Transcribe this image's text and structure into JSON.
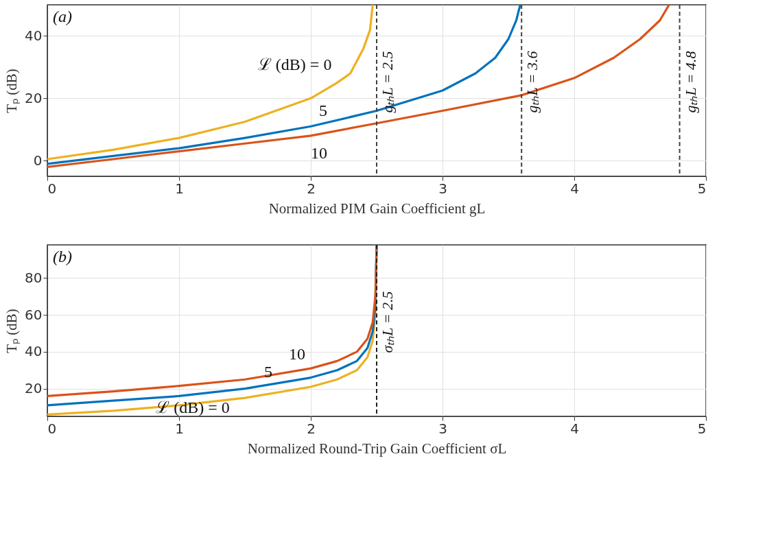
{
  "chart_data": [
    {
      "type": "line",
      "xlabel": "Normalized PIM Gain Coefficient gL",
      "ylabel": "Tₚ (dB)",
      "xlim": [
        0,
        5
      ],
      "xticks": [
        0,
        1,
        2,
        3,
        4,
        5
      ],
      "ylim": [
        -5,
        50
      ],
      "yticks": [
        0,
        20,
        40
      ],
      "grid": true,
      "line_style": "solid",
      "marker": "none",
      "series": [
        {
          "color": "#edb120",
          "x": [
            0,
            0.5,
            1,
            1.5,
            2,
            2.2,
            2.3,
            2.4,
            2.45,
            2.47
          ],
          "values": [
            0.5,
            3.5,
            7.3,
            12.5,
            20,
            25,
            28,
            36,
            42,
            50
          ]
        },
        {
          "color": "#0072bd",
          "x": [
            0,
            0.5,
            1,
            1.5,
            2,
            2.5,
            3,
            3.25,
            3.4,
            3.5,
            3.56,
            3.59
          ],
          "values": [
            -1,
            1.5,
            4,
            7.3,
            11,
            16,
            22.5,
            28,
            33,
            39,
            45,
            50
          ]
        },
        {
          "color": "#d95319",
          "x": [
            0,
            0.5,
            1,
            1.5,
            2,
            2.5,
            3,
            3.6,
            4,
            4.3,
            4.5,
            4.65,
            4.72
          ],
          "values": [
            -2,
            0.5,
            3,
            5.5,
            8,
            12,
            16,
            21,
            26.5,
            33,
            39,
            45,
            50
          ]
        }
      ],
      "ref_lines": [
        {
          "axis": "x",
          "value": 2.5,
          "label": "gₜₕL = 2.5",
          "color": "#404040",
          "line_style": "dashed"
        },
        {
          "axis": "x",
          "value": 3.6,
          "label": "gₜₕL = 3.6",
          "color": "#404040",
          "line_style": "dashed"
        },
        {
          "axis": "x",
          "value": 4.8,
          "label": "gₜₕL = 4.8",
          "color": "#404040",
          "line_style": "dashed"
        }
      ],
      "annotations": [
        "(a)",
        {
          "text": "ℒ (dB) = 0",
          "x": 2.2,
          "y": 25
        },
        {
          "text": "5",
          "x": 2,
          "y": 11
        },
        {
          "text": "10",
          "x": 2,
          "y": 8
        }
      ]
    },
    {
      "type": "line",
      "xlabel": "Normalized Round-Trip Gain Coefficient σL",
      "ylabel": "Tₚ (dB)",
      "xlim": [
        0,
        5
      ],
      "xticks": [
        0,
        1,
        2,
        3,
        4,
        5
      ],
      "ylim": [
        5,
        98
      ],
      "yticks": [
        20,
        40,
        60,
        80
      ],
      "grid": true,
      "line_style": "solid",
      "marker": "none",
      "series": [
        {
          "color": "#edb120",
          "x": [
            0,
            0.5,
            1,
            1.5,
            2,
            2.2,
            2.35,
            2.43,
            2.47,
            2.49,
            2.5
          ],
          "values": [
            6,
            8,
            11,
            15,
            21,
            25,
            30,
            37,
            46,
            60,
            98
          ]
        },
        {
          "color": "#0072bd",
          "x": [
            0,
            0.5,
            1,
            1.5,
            2,
            2.2,
            2.35,
            2.43,
            2.47,
            2.49,
            2.5
          ],
          "values": [
            11,
            13.5,
            16,
            20,
            26,
            30,
            35,
            42,
            51,
            65,
            98
          ]
        },
        {
          "color": "#d95319",
          "x": [
            0,
            0.5,
            1,
            1.5,
            2,
            2.2,
            2.35,
            2.43,
            2.47,
            2.49,
            2.5
          ],
          "values": [
            16,
            18.5,
            21.5,
            25,
            31,
            35,
            40,
            47,
            56,
            70,
            98
          ]
        }
      ],
      "ref_lines": [
        {
          "axis": "x",
          "value": 2.5,
          "label": "σₜₕL = 2.5",
          "color": "#202020",
          "line_style": "dashed"
        }
      ],
      "annotations": [
        "(b)",
        {
          "text": "10",
          "x": 2,
          "y": 31
        },
        {
          "text": "5",
          "x": 2,
          "y": 26
        },
        {
          "text": "ℒ (dB) = 0",
          "x": 1,
          "y": 11
        }
      ]
    }
  ]
}
